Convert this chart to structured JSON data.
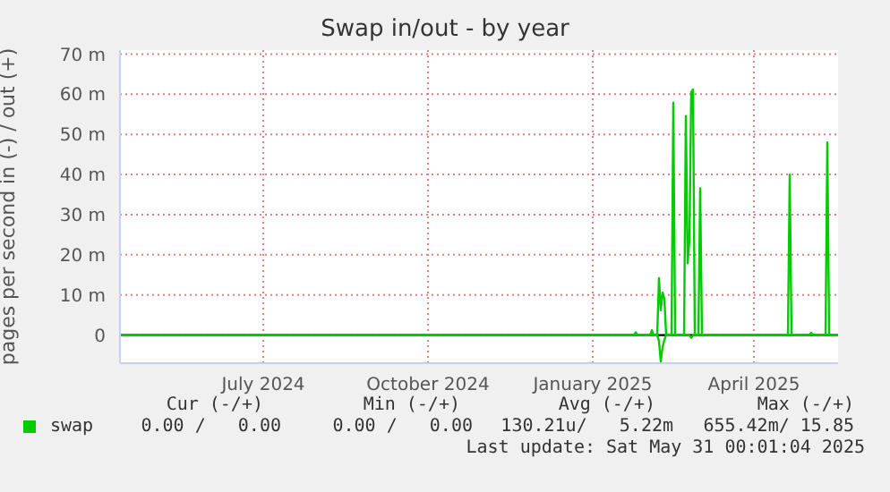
{
  "chart_data": {
    "type": "line",
    "title": "Swap in/out - by year",
    "ylabel": "pages per second in (-) / out (+)",
    "xlim": [
      "2024-04-12",
      "2025-05-18"
    ],
    "xticks": [
      {
        "value": "2024-07-01",
        "label": "July 2024"
      },
      {
        "value": "2024-10-01",
        "label": "October 2024"
      },
      {
        "value": "2025-01-01",
        "label": "January 2025"
      },
      {
        "value": "2025-04-01",
        "label": "April 2025"
      }
    ],
    "ylim": [
      -7,
      71
    ],
    "yticks": [
      {
        "value": 0,
        "label": "0"
      },
      {
        "value": 10,
        "label": "10 m"
      },
      {
        "value": 20,
        "label": "20 m"
      },
      {
        "value": 30,
        "label": "30 m"
      },
      {
        "value": 40,
        "label": "40 m"
      },
      {
        "value": 50,
        "label": "50 m"
      },
      {
        "value": 60,
        "label": "60 m"
      },
      {
        "value": 70,
        "label": "70 m"
      }
    ],
    "grid": true,
    "legend": "bottom",
    "marker": "none",
    "line_style": "solid",
    "ref_lines": [
      {
        "axis": "y",
        "value": 0,
        "color": "#000000"
      }
    ],
    "series": [
      {
        "name": "swap",
        "color": "#00cc00",
        "x": [
          "2024-04-12",
          "2025-01-24",
          "2025-01-25",
          "2025-01-26",
          "2025-02-02",
          "2025-02-03",
          "2025-02-04",
          "2025-02-06",
          "2025-02-07",
          "2025-02-08",
          "2025-02-09",
          "2025-02-10",
          "2025-02-11",
          "2025-02-14",
          "2025-02-15",
          "2025-02-16",
          "2025-02-21",
          "2025-02-22",
          "2025-02-23",
          "2025-02-24",
          "2025-02-25",
          "2025-02-26",
          "2025-02-27",
          "2025-03-01",
          "2025-03-02",
          "2025-03-03",
          "2025-04-20",
          "2025-04-21",
          "2025-04-22",
          "2025-05-02",
          "2025-05-03",
          "2025-05-04",
          "2025-05-11",
          "2025-05-12",
          "2025-05-13",
          "2025-05-18"
        ],
        "values": [
          0,
          0,
          0.7,
          0,
          0,
          1.2,
          0,
          0,
          14.2,
          6.2,
          10.6,
          9.1,
          0,
          0,
          57.9,
          0,
          0,
          54.6,
          17.9,
          23.8,
          60.5,
          61.2,
          0,
          0,
          36.6,
          0,
          0,
          40,
          0,
          0,
          0.6,
          0,
          0,
          48,
          0,
          0
        ]
      },
      {
        "color": "#00cc00",
        "x": [
          "2024-04-12",
          "2025-02-06",
          "2025-02-07",
          "2025-02-08",
          "2025-02-09",
          "2025-02-10",
          "2025-02-11",
          "2025-02-24",
          "2025-02-25",
          "2025-02-26",
          "2025-05-18"
        ],
        "values": [
          0,
          0,
          -1.5,
          -6.6,
          -3,
          -1.2,
          0,
          0,
          -0.7,
          0,
          0
        ]
      }
    ],
    "annotations": [
      "Cur (-/+)",
      "Min (-/+)",
      "Avg (-/+)",
      "Max (-/+)",
      "0.00 /   0.00",
      "0.00 /   0.00",
      "130.21u/   5.22m",
      "655.42m/ 15.85",
      "Last update: Sat May 31 00:01:04 2025"
    ]
  }
}
